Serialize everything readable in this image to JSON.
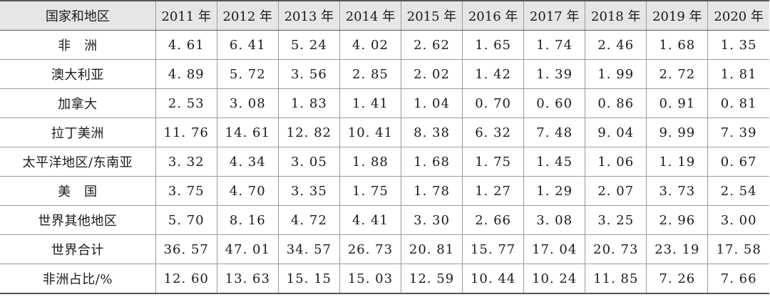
{
  "table": {
    "headers": [
      "国家和地区",
      "2011 年",
      "2012 年",
      "2013 年",
      "2014 年",
      "2015 年",
      "2016 年",
      "2017 年",
      "2018 年",
      "2019 年",
      "2020 年"
    ],
    "rows": [
      {
        "region": "非　洲",
        "values": [
          "4. 61",
          "6. 41",
          "5. 24",
          "4. 02",
          "2. 62",
          "1. 65",
          "1. 74",
          "2. 46",
          "1. 68",
          "1. 35"
        ]
      },
      {
        "region": "澳大利亚",
        "values": [
          "4. 89",
          "5. 72",
          "3. 56",
          "2. 85",
          "2. 02",
          "1. 42",
          "1. 39",
          "1. 99",
          "2. 72",
          "1. 81"
        ]
      },
      {
        "region": "加拿大",
        "values": [
          "2. 53",
          "3. 08",
          "1. 83",
          "1. 41",
          "1. 04",
          "0. 70",
          "0. 60",
          "0. 86",
          "0. 91",
          "0. 81"
        ]
      },
      {
        "region": "拉丁美洲",
        "values": [
          "11. 76",
          "14. 61",
          "12. 82",
          "10. 41",
          "8. 38",
          "6. 32",
          "7. 48",
          "9. 04",
          "9. 99",
          "7. 39"
        ]
      },
      {
        "region": "太平洋地区/东南亚",
        "values": [
          "3. 32",
          "4. 34",
          "3. 05",
          "1. 88",
          "1. 68",
          "1. 75",
          "1. 45",
          "1. 06",
          "1. 19",
          "0. 67"
        ]
      },
      {
        "region": "美　国",
        "values": [
          "3. 75",
          "4. 70",
          "3. 35",
          "1. 75",
          "1. 78",
          "1. 27",
          "1. 29",
          "2. 07",
          "3. 73",
          "2. 54"
        ]
      },
      {
        "region": "世界其他地区",
        "values": [
          "5. 70",
          "8. 16",
          "4. 72",
          "4. 41",
          "3. 30",
          "2. 66",
          "3. 08",
          "3. 25",
          "2. 96",
          "3. 00"
        ]
      },
      {
        "region": "世界合计",
        "values": [
          "36. 57",
          "47. 01",
          "34. 57",
          "26. 73",
          "20. 81",
          "15. 77",
          "17. 04",
          "20. 73",
          "23. 19",
          "17. 58"
        ]
      },
      {
        "region": "非洲占比/%",
        "values": [
          "12. 60",
          "13. 63",
          "15. 15",
          "15. 03",
          "12. 59",
          "10. 44",
          "10. 24",
          "11. 85",
          "7. 26",
          "7. 66"
        ]
      }
    ]
  }
}
